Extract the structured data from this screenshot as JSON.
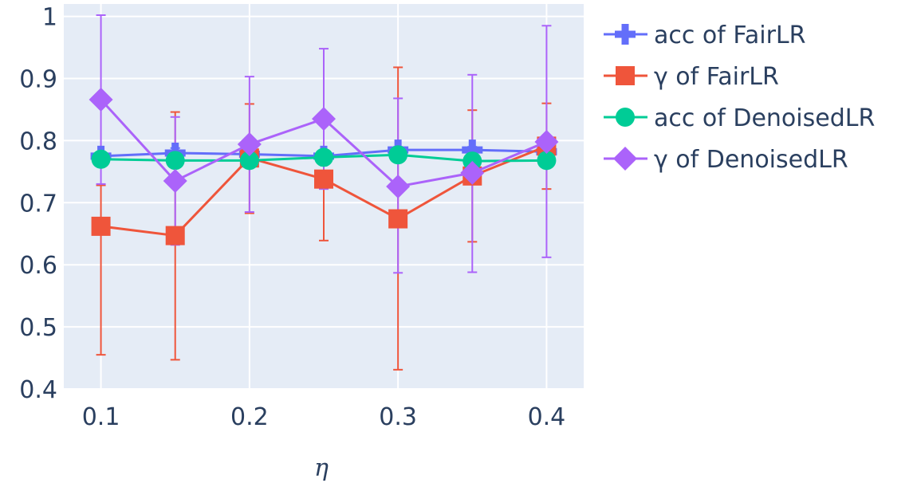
{
  "chart_data": {
    "type": "line",
    "title": "",
    "xlabel": "η",
    "ylabel": "",
    "x": [
      0.1,
      0.15,
      0.2,
      0.25,
      0.3,
      0.35,
      0.4
    ],
    "xlim": [
      0.075,
      0.425
    ],
    "ylim": [
      0.4,
      1.02
    ],
    "xticks": [
      0.1,
      0.2,
      0.3,
      0.4
    ],
    "xtick_labels": [
      "0.1",
      "0.2",
      "0.3",
      "0.4"
    ],
    "yticks": [
      0.4,
      0.5,
      0.6,
      0.7,
      0.8,
      0.9,
      1.0
    ],
    "ytick_labels": [
      "0.4",
      "0.5",
      "0.6",
      "0.7",
      "0.8",
      "0.9",
      "1"
    ],
    "grid": true,
    "legend_position": "right",
    "plot_background": "#E5ECF6",
    "series": [
      {
        "name": "acc of FairLR",
        "marker": "cross",
        "color": "#636EFA",
        "values": [
          0.775,
          0.78,
          0.778,
          0.775,
          0.785,
          0.785,
          0.782
        ],
        "error_low": [
          0.77,
          0.772,
          0.772,
          0.77,
          0.78,
          0.78,
          0.777
        ],
        "error_high": [
          0.78,
          0.788,
          0.785,
          0.78,
          0.79,
          0.79,
          0.787
        ]
      },
      {
        "name": "γ of FairLR",
        "marker": "square",
        "color": "#EF553B",
        "values": [
          0.662,
          0.647,
          0.772,
          0.738,
          0.674,
          0.743,
          0.791
        ],
        "error_low": [
          0.455,
          0.447,
          0.683,
          0.639,
          0.431,
          0.637,
          0.722
        ],
        "error_high": [
          0.728,
          0.846,
          0.859,
          0.775,
          0.918,
          0.849,
          0.86
        ]
      },
      {
        "name": "acc of DenoisedLR",
        "marker": "circle",
        "color": "#00CC96",
        "values": [
          0.77,
          0.768,
          0.768,
          0.773,
          0.777,
          0.767,
          0.768
        ],
        "error_low": [
          0.765,
          0.763,
          0.763,
          0.768,
          0.772,
          0.762,
          0.763
        ],
        "error_high": [
          0.775,
          0.773,
          0.773,
          0.778,
          0.782,
          0.772,
          0.773
        ]
      },
      {
        "name": "γ of DenoisedLR",
        "marker": "diamond",
        "color": "#AB63FA",
        "values": [
          0.866,
          0.735,
          0.794,
          0.835,
          0.726,
          0.748,
          0.798
        ],
        "error_low": [
          0.73,
          0.632,
          0.685,
          0.722,
          0.587,
          0.588,
          0.612
        ],
        "error_high": [
          1.002,
          0.838,
          0.903,
          0.948,
          0.868,
          0.906,
          0.985
        ]
      }
    ]
  }
}
